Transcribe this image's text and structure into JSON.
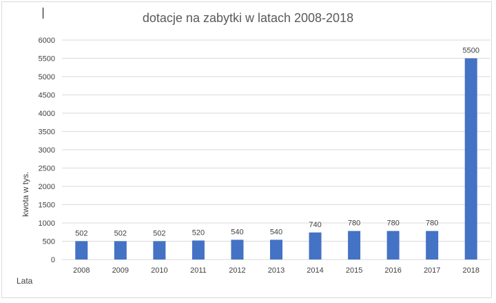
{
  "chart_data": {
    "type": "bar",
    "title": "dotacje na zabytki w latach 2008-2018",
    "xlabel": "Lata",
    "ylabel": "kwota w tys.",
    "categories": [
      "2008",
      "2009",
      "2010",
      "2011",
      "2012",
      "2013",
      "2014",
      "2015",
      "2016",
      "2017",
      "2018"
    ],
    "values": [
      502,
      502,
      502,
      520,
      540,
      540,
      740,
      780,
      780,
      780,
      5500
    ],
    "data_labels": [
      "502",
      "502",
      "502",
      "520",
      "540",
      "540",
      "740",
      "780",
      "780",
      "780",
      "5500"
    ],
    "yticks": [
      "0",
      "500",
      "1000",
      "1500",
      "2000",
      "2500",
      "3000",
      "3500",
      "4000",
      "4500",
      "5000",
      "5500",
      "6000"
    ],
    "ylim": [
      0,
      6000
    ],
    "grid": true,
    "legend": "none",
    "bar_color": "#4472c4",
    "grid_color": "#d9d9d9"
  }
}
